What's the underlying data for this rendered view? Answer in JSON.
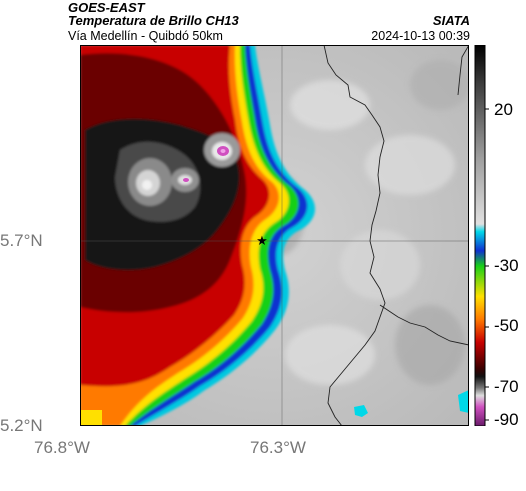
{
  "header": {
    "satellite": "GOES-EAST",
    "product": "Temperatura de Brillo CH13",
    "agency": "SIATA",
    "subtitle": "Vía Medellín - Quibdó 50km",
    "timestamp": "2024-10-13 00:39"
  },
  "axes": {
    "lat_labels": [
      "5.7°N",
      "5.2°N"
    ],
    "lon_labels": [
      "76.8°W",
      "76.3°W"
    ]
  },
  "colorbar": {
    "tick_labels": [
      "20",
      "-30",
      "-50",
      "-70",
      "-90"
    ],
    "range": [
      -95,
      40
    ],
    "units_hint": "brightness temperature °C"
  },
  "colors": {
    "cold_core": "#111111",
    "magenta": "#d050c0",
    "red": "#c80000",
    "orange": "#ff7a00",
    "yellow": "#ffe000",
    "green": "#20d020",
    "blue": "#1030d0",
    "cyan": "#00d0e0",
    "warm_gray": "#c8c8c8"
  }
}
